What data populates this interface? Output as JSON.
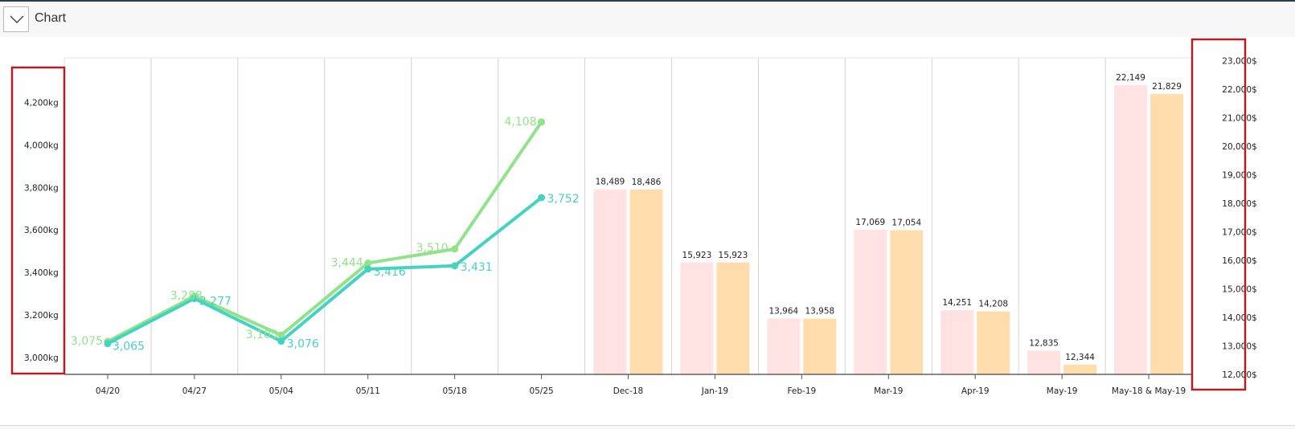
{
  "header": {
    "title": "Chart",
    "toggle_icon": "chevron-down-icon"
  },
  "chart_data": {
    "type": "combo",
    "categories": [
      "04/20",
      "04/27",
      "05/04",
      "05/11",
      "05/18",
      "05/25",
      "Dec-18",
      "Jan-19",
      "Feb-19",
      "Mar-19",
      "Apr-19",
      "May-19",
      "May-18 & May-19"
    ],
    "left_axis": {
      "ticks": [
        3000,
        3200,
        3400,
        3600,
        3800,
        4000,
        4200
      ],
      "unit_suffix": "kg",
      "ylim": [
        2920,
        4410
      ]
    },
    "right_axis": {
      "ticks": [
        12000,
        13000,
        14000,
        15000,
        16000,
        17000,
        18000,
        19000,
        20000,
        21000,
        22000,
        23000
      ],
      "unit_suffix": "$",
      "ylim": [
        12000,
        23100
      ]
    },
    "line_series": [
      {
        "values": [
          3075,
          3288,
          3105,
          3444,
          3510,
          4108
        ],
        "labels": [
          "3,075",
          "3,288",
          "3,105",
          "3,444",
          "3,510",
          "4,108"
        ],
        "color": "#90e38a",
        "axis": "left"
      },
      {
        "values": [
          3065,
          3277,
          3076,
          3416,
          3431,
          3752
        ],
        "labels": [
          "3,065",
          "3,277",
          "3,076",
          "3,416",
          "3,431",
          "3,752"
        ],
        "color": "#45d3c1",
        "axis": "left"
      }
    ],
    "bar_series": [
      {
        "categories": [
          "Dec-18",
          "Jan-19",
          "Feb-19",
          "Mar-19",
          "Apr-19",
          "May-19",
          "May-18 & May-19"
        ],
        "values": [
          18489,
          15923,
          13964,
          17069,
          14251,
          12835,
          22149
        ],
        "labels": [
          "18,489",
          "15,923",
          "13,964",
          "17,069",
          "14,251",
          "12,835",
          "22,149"
        ],
        "color": "#ffe2e1",
        "axis": "right"
      },
      {
        "categories": [
          "Dec-18",
          "Jan-19",
          "Feb-19",
          "Mar-19",
          "Apr-19",
          "May-19",
          "May-18 & May-19"
        ],
        "values": [
          18486,
          15923,
          13958,
          17054,
          14208,
          12344,
          21829
        ],
        "labels": [
          "18,486",
          "15,923",
          "13,958",
          "17,054",
          "14,208",
          "12,344",
          "21,829"
        ],
        "color": "#ffdcab",
        "axis": "right"
      }
    ],
    "grid": true,
    "highlight_color": "#b51d22",
    "legend": "none"
  }
}
